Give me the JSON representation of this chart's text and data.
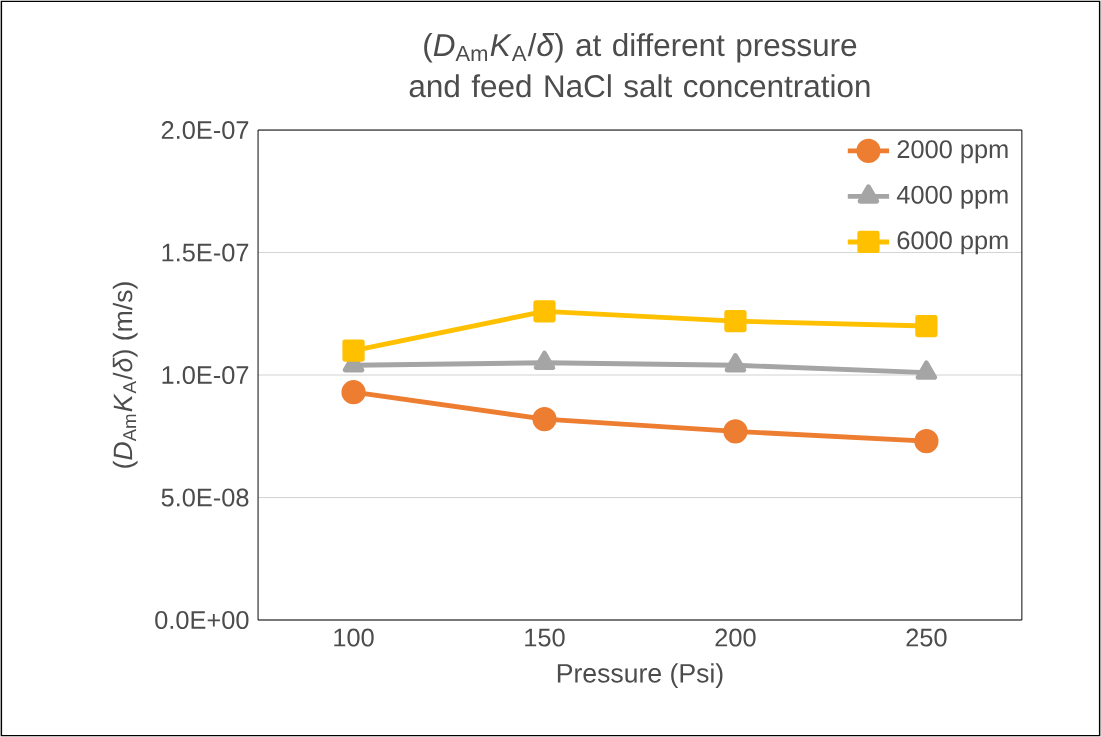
{
  "chart_data": {
    "type": "line",
    "title": "(*D*$_{Am}$*K*$_{A}$/*δ*) at different pressure and feed NaCl salt concentration",
    "xlabel": "Pressure (Psi)",
    "ylabel": "(*D*$_{Am}$*K*$_{A}$/*δ*) (m/s)",
    "categories": [
      "100",
      "150",
      "200",
      "250"
    ],
    "series": [
      {
        "name": "2000 ppm",
        "color": "#ed7d31",
        "marker": "circle",
        "values": [
          9.3e-08,
          8.2e-08,
          7.7e-08,
          7.3e-08
        ]
      },
      {
        "name": "4000 ppm",
        "color": "#a5a5a5",
        "marker": "triangle",
        "values": [
          1.04e-07,
          1.05e-07,
          1.04e-07,
          1.01e-07
        ]
      },
      {
        "name": "6000 ppm",
        "color": "#ffc000",
        "marker": "square",
        "values": [
          1.1e-07,
          1.26e-07,
          1.22e-07,
          1.2e-07
        ]
      }
    ],
    "ylim": [
      0,
      2e-07
    ],
    "yticks": [
      {
        "value": 0,
        "label": "0.0E+00"
      },
      {
        "value": 5e-08,
        "label": "5.0E-08"
      },
      {
        "value": 1e-07,
        "label": "1.0E-07"
      },
      {
        "value": 1.5e-07,
        "label": "1.5E-07"
      },
      {
        "value": 2e-07,
        "label": "2.0E-07"
      }
    ],
    "grid": "y",
    "legend": "top right",
    "line_style": "solid"
  }
}
